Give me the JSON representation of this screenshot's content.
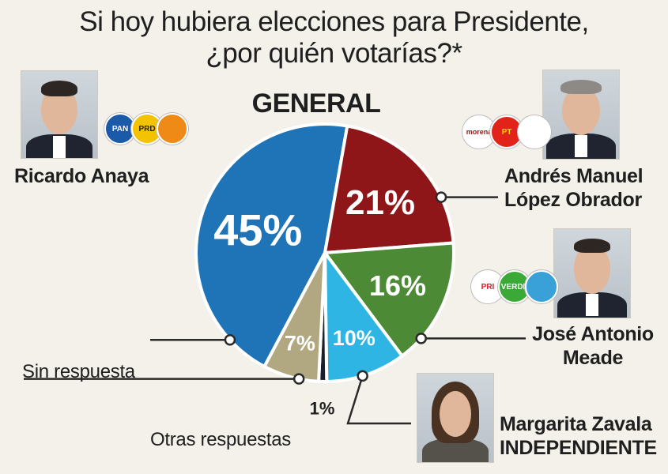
{
  "title_line1": "Si hoy hubiera elecciones para Presidente,",
  "title_line2": "¿por quién votarías?*",
  "subtitle": "GENERAL",
  "labels": {
    "anaya": "Ricardo Anaya",
    "amlo_1": "Andrés Manuel",
    "amlo_2": "López Obrador",
    "meade_1": "José Antonio",
    "meade_2": "Meade",
    "zavala_1": "Margarita Zavala",
    "zavala_2": "INDEPENDIENTE",
    "sin": "Sin respuesta",
    "otras": "Otras respuestas"
  },
  "logos": {
    "pan": "PAN",
    "prd": "PRD",
    "morena": "morena",
    "pt": "PT",
    "pri": "PRI",
    "verde": "VERDE"
  },
  "colors": {
    "anaya": "#1f73b7",
    "amlo": "#8e1518",
    "meade": "#4d8a36",
    "zavala": "#2fb5e4",
    "otras": "#1c1f2b",
    "sin": "#b1a882",
    "leader": "#2a2a2a"
  },
  "chart_data": {
    "type": "pie",
    "categories": [
      "Ricardo Anaya",
      "Andrés Manuel López Obrador",
      "José Antonio Meade",
      "Margarita Zavala",
      "Otras respuestas",
      "Sin respuesta"
    ],
    "values": [
      45,
      21,
      16,
      10,
      1,
      7
    ],
    "value_labels": [
      "45%",
      "21%",
      "16%",
      "10%",
      "1%",
      "7%"
    ],
    "title": "Si hoy hubiera elecciones para Presidente, ¿por quién votarías?*",
    "subtitle": "GENERAL",
    "colors": [
      "#1f73b7",
      "#8e1518",
      "#4d8a36",
      "#2fb5e4",
      "#1c1f2b",
      "#b1a882"
    ]
  }
}
